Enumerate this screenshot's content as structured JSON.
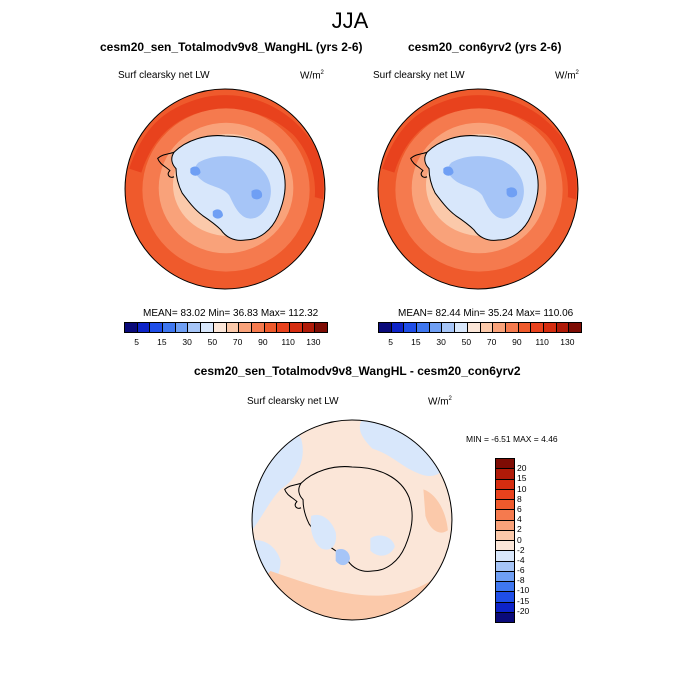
{
  "title": "JJA",
  "panels": [
    {
      "title": "cesm20_sen_Totalmodv9v8_WangHL (yrs 2-6)",
      "variable": "Surf clearsky net LW",
      "units": "W/m",
      "units_exp": "2",
      "stats": "MEAN= 83.02  Min= 36.83  Max= 112.32"
    },
    {
      "title": "cesm20_con6yrv2 (yrs 2-6)",
      "variable": "Surf clearsky net LW",
      "units": "W/m",
      "units_exp": "2",
      "stats": "MEAN= 82.44  Min= 35.24  Max= 110.06"
    }
  ],
  "diff_panel": {
    "title": "cesm20_sen_Totalmodv9v8_WangHL - cesm20_con6yrv2",
    "variable": "Surf clearsky net LW",
    "units": "W/m",
    "units_exp": "2",
    "stats": "MIN = -6.51 MAX =  4.46"
  },
  "colorbar_main": {
    "colors": [
      "#0a0a7a",
      "#0d23c8",
      "#1f4ee8",
      "#3f77f0",
      "#6f9ff4",
      "#a6c5f7",
      "#d8e7fb",
      "#fbe6d8",
      "#fbc9aa",
      "#f9a27a",
      "#f57a4e",
      "#ef5a2c",
      "#e8421d",
      "#d52d10",
      "#b01a08",
      "#7e0c04"
    ],
    "labels": [
      "5",
      "15",
      "30",
      "50",
      "70",
      "90",
      "110",
      "130"
    ]
  },
  "colorbar_diff": {
    "colors": [
      "#7e0c04",
      "#b01a08",
      "#d52d10",
      "#e8421d",
      "#ef5a2c",
      "#f57a4e",
      "#f9a27a",
      "#fbc9aa",
      "#fbe6d8",
      "#d8e7fb",
      "#a6c5f7",
      "#6f9ff4",
      "#3f77f0",
      "#1f4ee8",
      "#0d23c8",
      "#0a0a7a"
    ],
    "labels": [
      "20",
      "15",
      "10",
      "8",
      "6",
      "4",
      "2",
      "0",
      "-2",
      "-4",
      "-6",
      "-8",
      "-10",
      "-15",
      "-20"
    ]
  },
  "colors": {
    "ocean_outer": "#ef5a2c",
    "ocean_mid": "#f57a4e",
    "ocean_inner": "#f9a27a",
    "ice_edge": "#fbc9aa",
    "land_light": "#d8e7fb",
    "land_blue": "#a6c5f7",
    "land_deep": "#6f9ff4",
    "diff_bg": "#fbe6d8",
    "diff_warm": "#fbc9aa",
    "diff_cool": "#d8e7fb",
    "diff_cooler": "#a6c5f7"
  }
}
